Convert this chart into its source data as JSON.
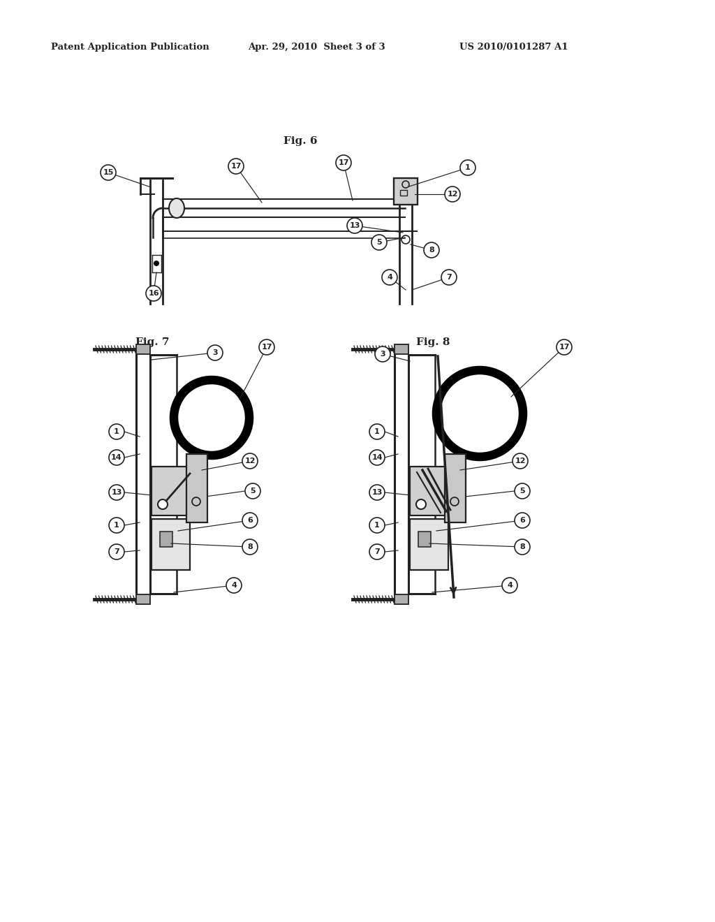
{
  "header_left": "Patent Application Publication",
  "header_mid": "Apr. 29, 2010  Sheet 3 of 3",
  "header_right": "US 2010/0101287 A1",
  "fig6_label": "Fig. 6",
  "fig7_label": "Fig. 7",
  "fig8_label": "Fig. 8",
  "bg_color": "#ffffff",
  "lc": "#222222",
  "tc": "#222222"
}
